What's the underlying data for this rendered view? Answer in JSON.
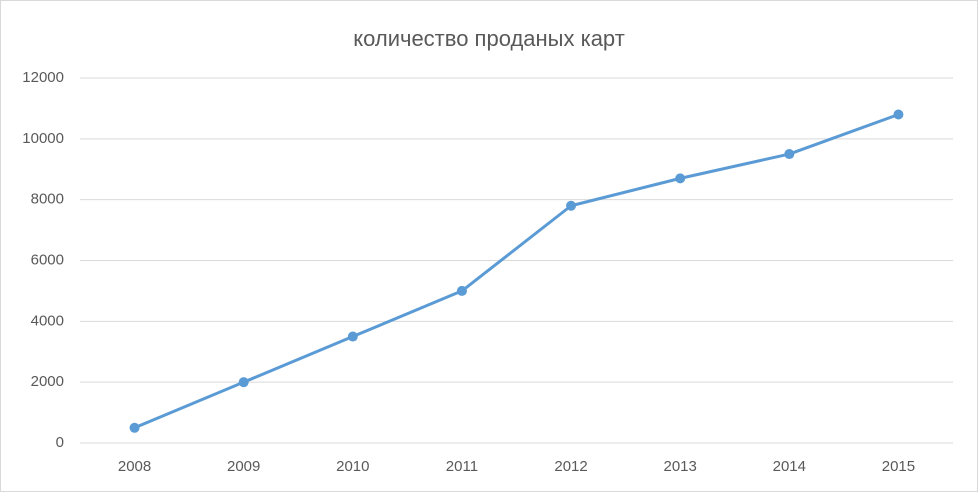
{
  "chart_data": {
    "type": "line",
    "title": "количество проданых карт",
    "categories": [
      "2008",
      "2009",
      "2010",
      "2011",
      "2012",
      "2013",
      "2014",
      "2015"
    ],
    "series": [
      {
        "name": "количество проданых карт",
        "color": "#5b9bd5",
        "values": [
          500,
          2000,
          3500,
          5000,
          7800,
          8700,
          9500,
          10800
        ]
      }
    ],
    "ylim": [
      0,
      12000
    ],
    "yticks": [
      0,
      2000,
      4000,
      6000,
      8000,
      10000,
      12000
    ],
    "grid": true
  }
}
